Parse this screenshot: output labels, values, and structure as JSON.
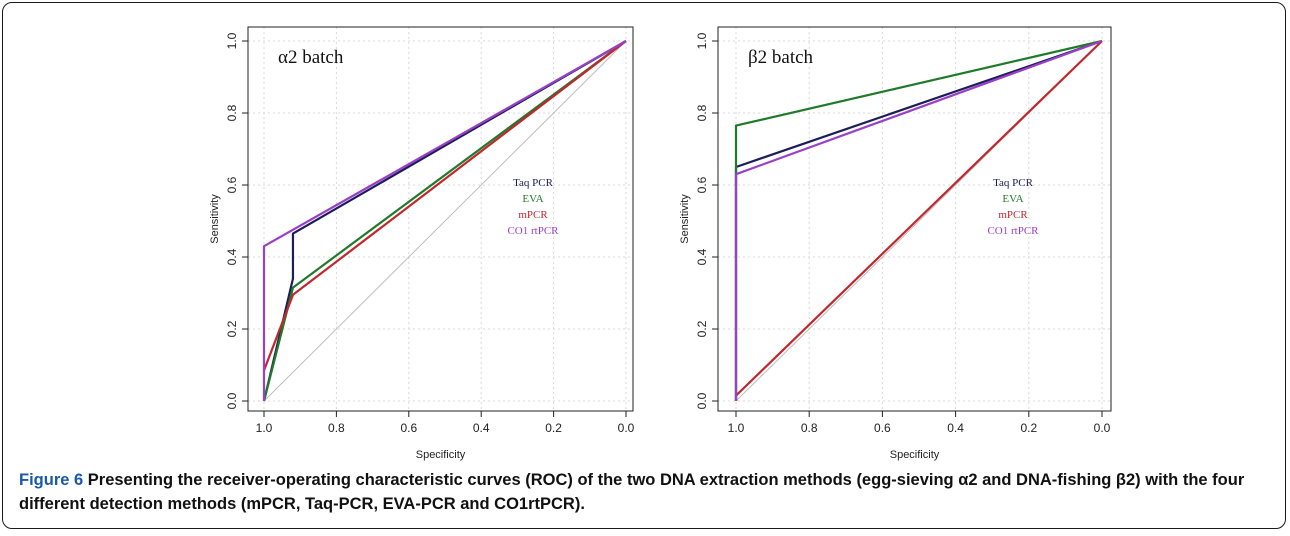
{
  "caption": {
    "label": "Figure 6",
    "text": "Presenting the receiver-operating characteristic curves (ROC) of the two DNA extraction methods (egg-sieving α2 and DNA-fishing β2) with the four different detection methods (mPCR, Taq-PCR, EVA-PCR and CO1rtPCR)."
  },
  "chart_data": [
    {
      "type": "line",
      "title": "α2 batch",
      "xlabel": "Specificity",
      "ylabel": "Sensitivity",
      "xlim": [
        1.0,
        0.0
      ],
      "ylim": [
        0.0,
        1.0
      ],
      "x_reversed": true,
      "grid": true,
      "xticks": [
        "1.0",
        "0.8",
        "0.6",
        "0.4",
        "0.2",
        "0.0"
      ],
      "yticks": [
        "0.0",
        "0.2",
        "0.4",
        "0.6",
        "0.8",
        "1.0"
      ],
      "legend": {
        "placement": "center-right"
      },
      "diagonal": true,
      "series": [
        {
          "name": "Taq PCR",
          "color": "#1d1d5a",
          "points": [
            [
              1.0,
              0.0
            ],
            [
              0.92,
              0.34
            ],
            [
              0.92,
              0.465
            ],
            [
              0.0,
              1.0
            ]
          ]
        },
        {
          "name": "EVA",
          "color": "#1f7a2a",
          "points": [
            [
              1.0,
              0.0
            ],
            [
              0.92,
              0.315
            ],
            [
              0.0,
              1.0
            ]
          ]
        },
        {
          "name": "mPCR",
          "color": "#c0282d",
          "points": [
            [
              1.0,
              0.085
            ],
            [
              0.92,
              0.295
            ],
            [
              0.0,
              1.0
            ]
          ]
        },
        {
          "name": "CO1 rtPCR",
          "color": "#9a3fc7",
          "points": [
            [
              1.0,
              0.0
            ],
            [
              1.0,
              0.43
            ],
            [
              0.0,
              1.0
            ]
          ]
        }
      ]
    },
    {
      "type": "line",
      "title": "β2 batch",
      "xlabel": "Specificity",
      "ylabel": "Sensitivity",
      "xlim": [
        1.0,
        0.0
      ],
      "ylim": [
        0.0,
        1.0
      ],
      "x_reversed": true,
      "grid": true,
      "xticks": [
        "1.0",
        "0.8",
        "0.6",
        "0.4",
        "0.2",
        "0.0"
      ],
      "yticks": [
        "0.0",
        "0.2",
        "0.4",
        "0.6",
        "0.8",
        "1.0"
      ],
      "legend": {
        "placement": "center-right"
      },
      "diagonal": true,
      "series": [
        {
          "name": "Taq PCR",
          "color": "#1d1d5a",
          "points": [
            [
              1.0,
              0.0
            ],
            [
              1.0,
              0.65
            ],
            [
              0.0,
              1.0
            ]
          ]
        },
        {
          "name": "EVA",
          "color": "#1f7a2a",
          "points": [
            [
              1.0,
              0.0
            ],
            [
              1.0,
              0.765
            ],
            [
              0.0,
              1.0
            ]
          ]
        },
        {
          "name": "mPCR",
          "color": "#c0282d",
          "points": [
            [
              1.0,
              0.0
            ],
            [
              1.0,
              0.015
            ],
            [
              0.0,
              1.0
            ]
          ]
        },
        {
          "name": "CO1 rtPCR",
          "color": "#9a3fc7",
          "points": [
            [
              1.0,
              0.0
            ],
            [
              1.0,
              0.63
            ],
            [
              0.0,
              1.0
            ]
          ]
        }
      ]
    }
  ]
}
